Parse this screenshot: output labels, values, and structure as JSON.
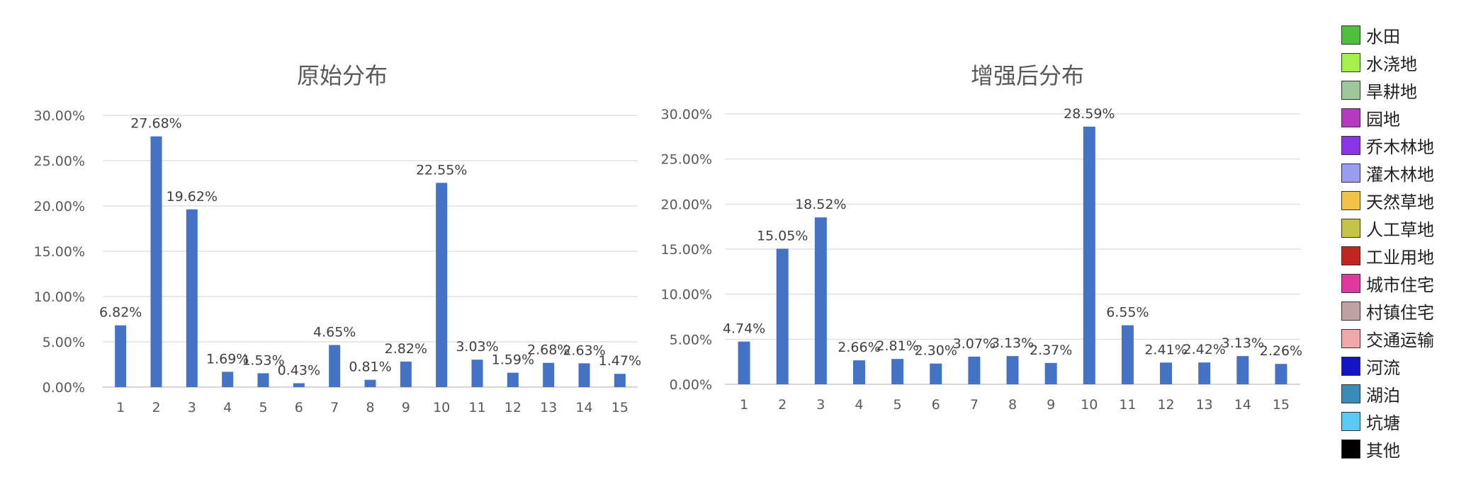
{
  "chart_data": [
    {
      "type": "bar",
      "title": "原始分布",
      "categories": [
        "1",
        "2",
        "3",
        "4",
        "5",
        "6",
        "7",
        "8",
        "9",
        "10",
        "11",
        "12",
        "13",
        "14",
        "15"
      ],
      "values": [
        6.82,
        27.68,
        19.62,
        1.69,
        1.53,
        0.43,
        4.65,
        0.81,
        2.82,
        22.55,
        3.03,
        1.59,
        2.68,
        2.63,
        1.47
      ],
      "labels": [
        "6.82%",
        "27.68%",
        "19.62%",
        "1.69%",
        "1.53%",
        "0.43%",
        "4.65%",
        "0.81%",
        "2.82%",
        "22.55%",
        "3.03%",
        "1.59%",
        "2.68%",
        "2.63%",
        "1.47%"
      ],
      "yticks": [
        "0.00%",
        "5.00%",
        "10.00%",
        "15.00%",
        "20.00%",
        "25.00%",
        "30.00%"
      ],
      "ylim": [
        0,
        30
      ],
      "grid": true,
      "bar_color": "#4472c4"
    },
    {
      "type": "bar",
      "title": "增强后分布",
      "categories": [
        "1",
        "2",
        "3",
        "4",
        "5",
        "6",
        "7",
        "8",
        "9",
        "10",
        "11",
        "12",
        "13",
        "14",
        "15"
      ],
      "values": [
        4.74,
        15.05,
        18.52,
        2.66,
        2.81,
        2.3,
        3.07,
        3.13,
        2.37,
        28.59,
        6.55,
        2.41,
        2.42,
        3.13,
        2.26
      ],
      "labels": [
        "4.74%",
        "15.05%",
        "18.52%",
        "2.66%",
        "2.81%",
        "2.30%",
        "3.07%",
        "3.13%",
        "2.37%",
        "28.59%",
        "6.55%",
        "2.41%",
        "2.42%",
        "3.13%",
        "2.26%"
      ],
      "yticks": [
        "0.00%",
        "5.00%",
        "10.00%",
        "15.00%",
        "20.00%",
        "25.00%",
        "30.00%"
      ],
      "ylim": [
        0,
        30
      ],
      "grid": true,
      "bar_color": "#4472c4"
    }
  ],
  "legend": [
    {
      "label": "水田",
      "color": "#4fbf3f"
    },
    {
      "label": "水浇地",
      "color": "#a6f04d"
    },
    {
      "label": "旱耕地",
      "color": "#9ec79b"
    },
    {
      "label": "园地",
      "color": "#b43ac0"
    },
    {
      "label": "乔木林地",
      "color": "#8a35e8"
    },
    {
      "label": "灌木林地",
      "color": "#9a9cef"
    },
    {
      "label": "天然草地",
      "color": "#f2c24a"
    },
    {
      "label": "人工草地",
      "color": "#c4c248"
    },
    {
      "label": "工业用地",
      "color": "#c0261f"
    },
    {
      "label": "城市住宅",
      "color": "#e0389c"
    },
    {
      "label": "村镇住宅",
      "color": "#bfa3a2"
    },
    {
      "label": "交通运输",
      "color": "#f0a8a8"
    },
    {
      "label": "河流",
      "color": "#1414c4"
    },
    {
      "label": "湖泊",
      "color": "#3b8ab8"
    },
    {
      "label": "坑塘",
      "color": "#5cc8f5"
    },
    {
      "label": "其他",
      "color": "#000000"
    }
  ]
}
